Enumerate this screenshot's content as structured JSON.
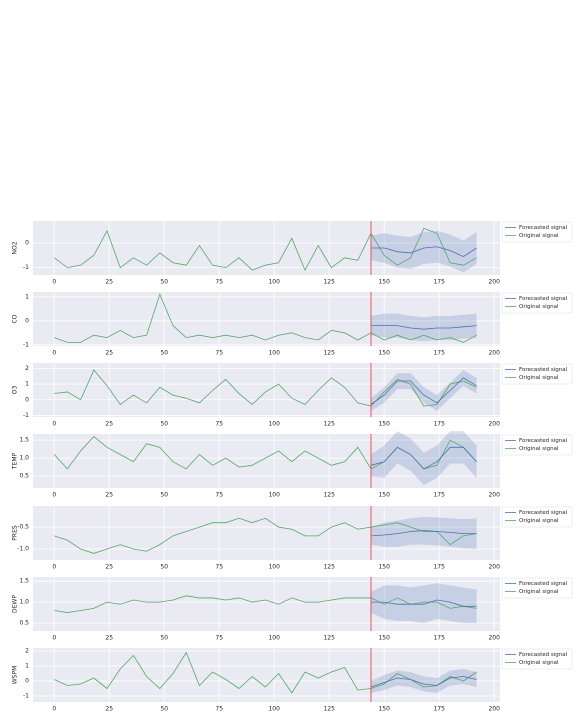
{
  "chart_data": [
    {
      "type": "line",
      "ylabel": "NO2",
      "xlim": [
        -9.65,
        202.65
      ],
      "ylim": [
        -1.3,
        0.9
      ],
      "xticks": [
        0,
        25,
        50,
        75,
        100,
        125,
        150,
        175,
        200
      ],
      "yticks": [
        -1,
        0
      ],
      "vline": 144,
      "vline_color": "#e8515e",
      "grid": true,
      "series": [
        {
          "name": "Forecasted signal",
          "color": "#4c72b0",
          "x": [
            144,
            150,
            156,
            162,
            168,
            174,
            180,
            186,
            192
          ],
          "values": [
            -0.2,
            -0.2,
            -0.35,
            -0.4,
            -0.2,
            -0.15,
            -0.3,
            -0.55,
            -0.2
          ],
          "lower": [
            -0.7,
            -0.8,
            -1.0,
            -1.05,
            -0.85,
            -0.8,
            -0.95,
            -1.2,
            -0.85
          ],
          "upper": [
            0.3,
            0.4,
            0.3,
            0.25,
            0.45,
            0.5,
            0.35,
            0.1,
            0.45
          ]
        },
        {
          "name": "Original signal",
          "color": "#55a868",
          "x": [
            0,
            6,
            12,
            18,
            24,
            30,
            36,
            42,
            48,
            54,
            60,
            66,
            72,
            78,
            84,
            90,
            96,
            102,
            108,
            114,
            120,
            126,
            132,
            138,
            144,
            150,
            156,
            162,
            168,
            174,
            180,
            186,
            192
          ],
          "values": [
            -0.6,
            -1.0,
            -0.9,
            -0.5,
            0.5,
            -1.0,
            -0.6,
            -0.9,
            -0.4,
            -0.8,
            -0.9,
            -0.1,
            -0.9,
            -1.0,
            -0.6,
            -1.1,
            -0.9,
            -0.8,
            0.2,
            -1.1,
            -0.1,
            -1.0,
            -0.6,
            -0.7,
            0.4,
            -0.5,
            -0.9,
            -0.6,
            0.6,
            0.4,
            -0.8,
            -0.9,
            -0.6
          ]
        }
      ]
    },
    {
      "type": "line",
      "ylabel": "CO",
      "xlim": [
        -9.65,
        202.65
      ],
      "ylim": [
        -1.05,
        1.2
      ],
      "xticks": [
        0,
        25,
        50,
        75,
        100,
        125,
        150,
        175,
        200
      ],
      "yticks": [
        -1,
        0,
        1
      ],
      "vline": 144,
      "vline_color": "#e8515e",
      "grid": true,
      "series": [
        {
          "name": "Forecasted signal",
          "color": "#4c72b0",
          "x": [
            144,
            150,
            156,
            162,
            168,
            174,
            180,
            186,
            192
          ],
          "values": [
            -0.2,
            -0.2,
            -0.2,
            -0.3,
            -0.35,
            -0.3,
            -0.3,
            -0.25,
            -0.2
          ],
          "lower": [
            -0.6,
            -0.7,
            -0.7,
            -0.8,
            -0.85,
            -0.8,
            -0.8,
            -0.75,
            -0.7
          ],
          "upper": [
            0.2,
            0.3,
            0.3,
            0.2,
            0.15,
            0.2,
            0.2,
            0.25,
            0.3
          ]
        },
        {
          "name": "Original signal",
          "color": "#55a868",
          "x": [
            0,
            6,
            12,
            18,
            24,
            30,
            36,
            42,
            48,
            54,
            60,
            66,
            72,
            78,
            84,
            90,
            96,
            102,
            108,
            114,
            120,
            126,
            132,
            138,
            144,
            150,
            156,
            162,
            168,
            174,
            180,
            186,
            192
          ],
          "values": [
            -0.7,
            -0.9,
            -0.9,
            -0.6,
            -0.7,
            -0.4,
            -0.7,
            -0.6,
            1.1,
            -0.2,
            -0.7,
            -0.6,
            -0.7,
            -0.6,
            -0.7,
            -0.6,
            -0.8,
            -0.6,
            -0.5,
            -0.7,
            -0.8,
            -0.4,
            -0.5,
            -0.8,
            -0.5,
            -0.8,
            -0.6,
            -0.8,
            -0.6,
            -0.8,
            -0.7,
            -0.9,
            -0.6
          ]
        }
      ]
    },
    {
      "type": "line",
      "ylabel": "O3",
      "xlim": [
        -9.65,
        202.65
      ],
      "ylim": [
        -1.1,
        2.35
      ],
      "xticks": [
        0,
        25,
        50,
        75,
        100,
        125,
        150,
        175,
        200
      ],
      "yticks": [
        -1,
        0,
        1,
        2
      ],
      "vline": 144,
      "vline_color": "#e8515e",
      "grid": true,
      "series": [
        {
          "name": "Forecasted signal",
          "color": "#4c72b0",
          "x": [
            144,
            150,
            156,
            162,
            168,
            174,
            180,
            186,
            192
          ],
          "values": [
            -0.3,
            0.3,
            1.2,
            1.2,
            0.3,
            -0.2,
            0.6,
            1.4,
            0.9
          ],
          "lower": [
            -0.7,
            -0.2,
            0.7,
            0.7,
            -0.2,
            -0.7,
            0.1,
            0.9,
            0.4
          ],
          "upper": [
            0.1,
            0.8,
            1.7,
            1.7,
            0.8,
            0.3,
            1.1,
            1.9,
            1.4
          ]
        },
        {
          "name": "Original signal",
          "color": "#55a868",
          "x": [
            0,
            6,
            12,
            18,
            24,
            30,
            36,
            42,
            48,
            54,
            60,
            66,
            72,
            78,
            84,
            90,
            96,
            102,
            108,
            114,
            120,
            126,
            132,
            138,
            144,
            150,
            156,
            162,
            168,
            174,
            180,
            186,
            192
          ],
          "values": [
            0.4,
            0.5,
            0.0,
            1.9,
            0.9,
            -0.3,
            0.3,
            -0.2,
            0.8,
            0.3,
            0.1,
            -0.2,
            0.6,
            1.3,
            0.4,
            -0.3,
            0.5,
            1.0,
            0.1,
            -0.3,
            0.6,
            1.4,
            0.8,
            -0.2,
            -0.4,
            0.5,
            1.3,
            1.0,
            -0.4,
            -0.3,
            1.0,
            1.2,
            0.8
          ]
        }
      ]
    },
    {
      "type": "line",
      "ylabel": "TEMP",
      "xlim": [
        -9.65,
        202.65
      ],
      "ylim": [
        0.17,
        1.67
      ],
      "xticks": [
        0,
        25,
        50,
        75,
        100,
        125,
        150,
        175,
        200
      ],
      "yticks": [
        0.5,
        {
          "value": 1,
          "label": "1.0"
        },
        1.5
      ],
      "vline": 144,
      "vline_color": "#e8515e",
      "grid": true,
      "series": [
        {
          "name": "Forecasted signal",
          "color": "#4c72b0",
          "x": [
            144,
            150,
            156,
            162,
            168,
            174,
            180,
            186,
            192
          ],
          "values": [
            0.8,
            0.9,
            1.3,
            1.1,
            0.7,
            0.9,
            1.3,
            1.3,
            0.9
          ],
          "lower": [
            0.5,
            0.45,
            0.85,
            0.65,
            0.25,
            0.45,
            0.85,
            0.85,
            0.45
          ],
          "upper": [
            1.1,
            1.35,
            1.75,
            1.55,
            1.15,
            1.35,
            1.75,
            1.75,
            1.35
          ]
        },
        {
          "name": "Original signal",
          "color": "#55a868",
          "x": [
            0,
            6,
            12,
            18,
            24,
            30,
            36,
            42,
            48,
            54,
            60,
            66,
            72,
            78,
            84,
            90,
            96,
            102,
            108,
            114,
            120,
            126,
            132,
            138,
            144,
            150,
            156,
            162,
            168,
            174,
            180,
            186,
            192
          ],
          "values": [
            1.1,
            0.7,
            1.2,
            1.6,
            1.3,
            1.1,
            0.9,
            1.4,
            1.3,
            0.9,
            0.7,
            1.1,
            0.8,
            1.0,
            0.75,
            0.8,
            1.0,
            1.2,
            0.9,
            1.2,
            1.0,
            0.8,
            0.9,
            1.3,
            0.7,
            0.9,
            1.3,
            1.1,
            0.7,
            0.8,
            1.5,
            1.3,
            0.9
          ]
        }
      ]
    },
    {
      "type": "line",
      "ylabel": "PRES",
      "xlim": [
        -9.65,
        202.65
      ],
      "ylim": [
        -1.25,
        -0.02
      ],
      "xticks": [
        0,
        25,
        50,
        75,
        100,
        125,
        150,
        175,
        200
      ],
      "yticks": [
        {
          "value": -1,
          "label": "-1.0"
        },
        -0.5
      ],
      "vline": 144,
      "vline_color": "#e8515e",
      "grid": true,
      "series": [
        {
          "name": "Forecasted signal",
          "color": "#4c72b0",
          "x": [
            144,
            150,
            156,
            162,
            168,
            174,
            180,
            186,
            192
          ],
          "values": [
            -0.7,
            -0.68,
            -0.65,
            -0.6,
            -0.58,
            -0.6,
            -0.62,
            -0.65,
            -0.65
          ],
          "lower": [
            -0.9,
            -0.95,
            -0.95,
            -0.9,
            -0.9,
            -0.92,
            -0.95,
            -0.98,
            -1.0
          ],
          "upper": [
            -0.5,
            -0.4,
            -0.35,
            -0.3,
            -0.27,
            -0.28,
            -0.3,
            -0.32,
            -0.3
          ]
        },
        {
          "name": "Original signal",
          "color": "#55a868",
          "x": [
            0,
            6,
            12,
            18,
            24,
            30,
            36,
            42,
            48,
            54,
            60,
            66,
            72,
            78,
            84,
            90,
            96,
            102,
            108,
            114,
            120,
            126,
            132,
            138,
            144,
            150,
            156,
            162,
            168,
            174,
            180,
            186,
            192
          ],
          "values": [
            -0.7,
            -0.8,
            -1.0,
            -1.1,
            -1.0,
            -0.9,
            -1.0,
            -1.05,
            -0.9,
            -0.7,
            -0.6,
            -0.5,
            -0.4,
            -0.4,
            -0.3,
            -0.4,
            -0.3,
            -0.5,
            -0.55,
            -0.7,
            -0.7,
            -0.5,
            -0.4,
            -0.55,
            -0.5,
            -0.45,
            -0.4,
            -0.5,
            -0.6,
            -0.6,
            -0.9,
            -0.7,
            -0.65
          ]
        }
      ]
    },
    {
      "type": "line",
      "ylabel": "DEWP",
      "xlim": [
        -9.65,
        202.65
      ],
      "ylim": [
        0.31,
        1.6
      ],
      "xticks": [
        0,
        25,
        50,
        75,
        100,
        125,
        150,
        175,
        200
      ],
      "yticks": [
        0.5,
        {
          "value": 1,
          "label": "1.0"
        },
        1.5
      ],
      "vline": 144,
      "vline_color": "#e8515e",
      "grid": true,
      "series": [
        {
          "name": "Forecasted signal",
          "color": "#4c72b0",
          "x": [
            144,
            150,
            156,
            162,
            168,
            174,
            180,
            186,
            192
          ],
          "values": [
            1.0,
            1.0,
            0.95,
            0.95,
            0.95,
            1.05,
            1.0,
            0.9,
            0.9
          ],
          "lower": [
            0.75,
            0.6,
            0.55,
            0.55,
            0.5,
            0.6,
            0.55,
            0.5,
            0.5
          ],
          "upper": [
            1.25,
            1.4,
            1.4,
            1.35,
            1.4,
            1.45,
            1.4,
            1.35,
            1.3
          ]
        },
        {
          "name": "Original signal",
          "color": "#55a868",
          "x": [
            0,
            6,
            12,
            18,
            24,
            30,
            36,
            42,
            48,
            54,
            60,
            66,
            72,
            78,
            84,
            90,
            96,
            102,
            108,
            114,
            120,
            126,
            132,
            138,
            144,
            150,
            156,
            162,
            168,
            174,
            180,
            186,
            192
          ],
          "values": [
            0.8,
            0.75,
            0.8,
            0.85,
            1.0,
            0.95,
            1.05,
            1.0,
            1.0,
            1.05,
            1.15,
            1.1,
            1.1,
            1.05,
            1.1,
            1.0,
            1.05,
            0.95,
            1.1,
            1.0,
            1.0,
            1.05,
            1.1,
            1.1,
            1.1,
            0.95,
            1.1,
            0.95,
            1.0,
            1.0,
            0.85,
            0.9,
            0.85
          ]
        }
      ]
    },
    {
      "type": "line",
      "ylabel": "WSPM",
      "xlim": [
        -9.65,
        202.65
      ],
      "ylim": [
        -1.4,
        2.2
      ],
      "xticks": [
        0,
        25,
        50,
        75,
        100,
        125,
        150,
        175,
        200
      ],
      "yticks": [
        -1,
        0,
        1,
        2
      ],
      "vline": 144,
      "vline_color": "#e8515e",
      "grid": true,
      "series": [
        {
          "name": "Forecasted signal",
          "color": "#4c72b0",
          "x": [
            144,
            150,
            156,
            162,
            168,
            174,
            180,
            186,
            192
          ],
          "values": [
            -0.4,
            -0.1,
            0.2,
            0.1,
            -0.2,
            -0.3,
            0.2,
            0.3,
            0.1
          ],
          "lower": [
            -0.8,
            -0.6,
            -0.3,
            -0.4,
            -0.7,
            -0.8,
            -0.3,
            -0.2,
            -0.4
          ],
          "upper": [
            0.0,
            0.4,
            0.7,
            0.6,
            0.3,
            0.2,
            0.7,
            0.8,
            0.6
          ]
        },
        {
          "name": "Original signal",
          "color": "#55a868",
          "x": [
            0,
            6,
            12,
            18,
            24,
            30,
            36,
            42,
            48,
            54,
            60,
            66,
            72,
            78,
            84,
            90,
            96,
            102,
            108,
            114,
            120,
            126,
            132,
            138,
            144,
            150,
            156,
            162,
            168,
            174,
            180,
            186,
            192
          ],
          "values": [
            0.1,
            -0.3,
            -0.2,
            0.2,
            -0.5,
            0.8,
            1.7,
            0.3,
            -0.5,
            0.5,
            1.9,
            -0.3,
            0.6,
            0.1,
            -0.5,
            0.3,
            -0.4,
            0.5,
            -0.8,
            0.6,
            0.2,
            0.6,
            0.9,
            -0.6,
            -0.5,
            -0.2,
            0.5,
            0.1,
            -0.4,
            -0.3,
            0.3,
            0.0,
            0.6
          ]
        }
      ]
    }
  ]
}
